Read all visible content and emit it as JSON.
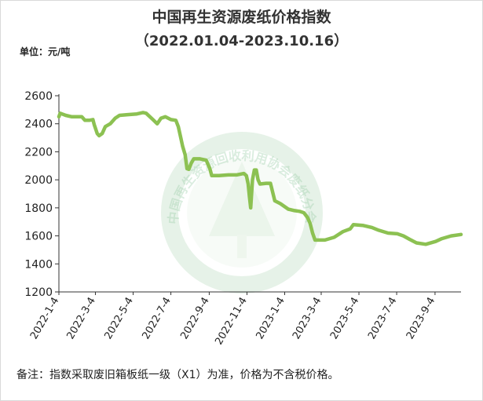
{
  "chart_data": {
    "type": "line",
    "title": "中国再生资源废纸价格指数",
    "subtitle": "（2022.01.04-2023.10.16）",
    "ylabel": "单位：元/吨",
    "xlabel": "",
    "ylim": [
      1200,
      2600
    ],
    "yticks": [
      1200,
      1400,
      1600,
      1800,
      2000,
      2200,
      2400,
      2600
    ],
    "grid": false,
    "legend": "none",
    "line_color": "#8cc152",
    "x_tick_labels": [
      "2022-1-4",
      "2022-3-4",
      "2022-5-4",
      "2022-7-4",
      "2022-9-4",
      "2022-11-4",
      "2023-1-4",
      "2023-3-4",
      "2023-5-4",
      "2023-7-4",
      "2023-9-4"
    ],
    "series": [
      {
        "name": "",
        "points": [
          [
            "2022-01-04",
            2450
          ],
          [
            "2022-01-06",
            2475
          ],
          [
            "2022-01-15",
            2460
          ],
          [
            "2022-01-25",
            2450
          ],
          [
            "2022-02-10",
            2450
          ],
          [
            "2022-02-15",
            2425
          ],
          [
            "2022-02-22",
            2425
          ],
          [
            "2022-02-28",
            2430
          ],
          [
            "2022-03-02",
            2395
          ],
          [
            "2022-03-07",
            2330
          ],
          [
            "2022-03-10",
            2315
          ],
          [
            "2022-03-15",
            2330
          ],
          [
            "2022-03-20",
            2380
          ],
          [
            "2022-03-28",
            2400
          ],
          [
            "2022-04-05",
            2440
          ],
          [
            "2022-04-12",
            2460
          ],
          [
            "2022-04-25",
            2465
          ],
          [
            "2022-05-10",
            2470
          ],
          [
            "2022-05-20",
            2480
          ],
          [
            "2022-05-25",
            2475
          ],
          [
            "2022-06-05",
            2430
          ],
          [
            "2022-06-12",
            2400
          ],
          [
            "2022-06-18",
            2440
          ],
          [
            "2022-06-25",
            2450
          ],
          [
            "2022-07-04",
            2430
          ],
          [
            "2022-07-12",
            2425
          ],
          [
            "2022-07-16",
            2380
          ],
          [
            "2022-07-20",
            2300
          ],
          [
            "2022-07-23",
            2240
          ],
          [
            "2022-07-27",
            2180
          ],
          [
            "2022-07-30",
            2080
          ],
          [
            "2022-08-02",
            2075
          ],
          [
            "2022-08-06",
            2120
          ],
          [
            "2022-08-10",
            2150
          ],
          [
            "2022-08-20",
            2150
          ],
          [
            "2022-08-30",
            2140
          ],
          [
            "2022-09-05",
            2080
          ],
          [
            "2022-09-08",
            2030
          ],
          [
            "2022-09-20",
            2030
          ],
          [
            "2022-10-05",
            2035
          ],
          [
            "2022-10-18",
            2035
          ],
          [
            "2022-10-30",
            2045
          ],
          [
            "2022-11-03",
            2030
          ],
          [
            "2022-11-06",
            1970
          ],
          [
            "2022-11-08",
            1880
          ],
          [
            "2022-11-10",
            1800
          ],
          [
            "2022-11-13",
            2000
          ],
          [
            "2022-11-16",
            2070
          ],
          [
            "2022-11-19",
            2070
          ],
          [
            "2022-11-22",
            2000
          ],
          [
            "2022-11-25",
            1970
          ],
          [
            "2022-12-05",
            1975
          ],
          [
            "2022-12-12",
            1975
          ],
          [
            "2022-12-15",
            1920
          ],
          [
            "2022-12-19",
            1850
          ],
          [
            "2022-12-28",
            1830
          ],
          [
            "2023-01-10",
            1790
          ],
          [
            "2023-01-20",
            1780
          ],
          [
            "2023-01-28",
            1775
          ],
          [
            "2023-02-04",
            1765
          ],
          [
            "2023-02-10",
            1730
          ],
          [
            "2023-02-14",
            1690
          ],
          [
            "2023-02-18",
            1620
          ],
          [
            "2023-02-22",
            1570
          ],
          [
            "2023-03-10",
            1570
          ],
          [
            "2023-03-25",
            1590
          ],
          [
            "2023-04-08",
            1630
          ],
          [
            "2023-04-20",
            1650
          ],
          [
            "2023-04-25",
            1680
          ],
          [
            "2023-05-10",
            1675
          ],
          [
            "2023-05-25",
            1660
          ],
          [
            "2023-06-05",
            1640
          ],
          [
            "2023-06-20",
            1620
          ],
          [
            "2023-07-05",
            1615
          ],
          [
            "2023-07-15",
            1600
          ],
          [
            "2023-07-25",
            1575
          ],
          [
            "2023-08-05",
            1550
          ],
          [
            "2023-08-20",
            1540
          ],
          [
            "2023-09-05",
            1560
          ],
          [
            "2023-09-15",
            1580
          ],
          [
            "2023-09-30",
            1600
          ],
          [
            "2023-10-16",
            1610
          ]
        ]
      }
    ],
    "note": "备注：指数采取废旧箱板纸一级（X1）为准，价格为不含税价格。",
    "watermark": "中国再生资源回收利用协会废纸分会"
  }
}
